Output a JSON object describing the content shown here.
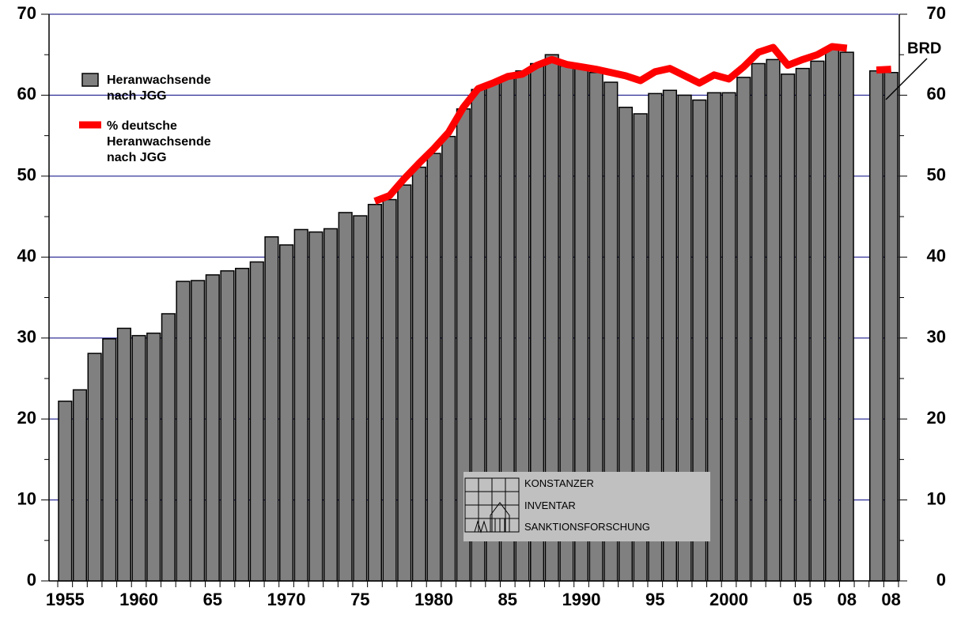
{
  "chart_data": {
    "type": "bar",
    "categories": [
      "1955",
      null,
      null,
      null,
      null,
      "1960",
      null,
      null,
      null,
      null,
      "65",
      null,
      null,
      null,
      null,
      "1970",
      null,
      null,
      null,
      null,
      "75",
      null,
      null,
      null,
      null,
      "1980",
      null,
      null,
      null,
      null,
      "85",
      null,
      null,
      null,
      null,
      "1990",
      null,
      null,
      null,
      null,
      "95",
      null,
      null,
      null,
      null,
      "2000",
      null,
      null,
      null,
      null,
      "05",
      null,
      null,
      "08",
      null,
      null,
      "08"
    ],
    "series": [
      {
        "name": "Heranwachsende nach JGG",
        "type": "bar",
        "color": "#808080",
        "values": [
          22.2,
          23.6,
          28.1,
          29.9,
          31.2,
          30.3,
          30.6,
          33.0,
          37.0,
          37.1,
          37.8,
          38.3,
          38.6,
          39.4,
          42.5,
          41.5,
          43.4,
          43.1,
          43.5,
          45.5,
          45.1,
          46.5,
          47.1,
          48.9,
          51.1,
          52.8,
          54.9,
          58.3,
          60.7,
          61.5,
          62.1,
          63.0,
          63.9,
          65.0,
          63.6,
          63.5,
          62.8,
          61.6,
          58.5,
          57.7,
          60.2,
          60.6,
          60.0,
          59.4,
          60.3,
          60.3,
          62.2,
          63.9,
          64.4,
          62.6,
          63.3,
          64.2,
          65.7,
          65.3,
          null,
          63.0,
          62.8
        ]
      },
      {
        "name": "% deutsche Heranwachsende nach JGG",
        "type": "line",
        "color": "#ff0000",
        "axis": "y2",
        "values": [
          null,
          null,
          null,
          null,
          null,
          null,
          null,
          null,
          null,
          null,
          null,
          null,
          null,
          null,
          null,
          null,
          null,
          null,
          null,
          null,
          null,
          46.9,
          47.6,
          49.7,
          51.6,
          53.4,
          55.4,
          58.5,
          60.8,
          61.5,
          62.3,
          62.6,
          63.7,
          64.4,
          63.8,
          63.5,
          63.2,
          62.8,
          62.4,
          61.8,
          62.9,
          63.3,
          62.4,
          61.5,
          62.5,
          62.0,
          63.5,
          65.3,
          65.9,
          63.7,
          64.4,
          65.0,
          66.0,
          65.8,
          null,
          63.1,
          63.2
        ]
      }
    ],
    "ylim": [
      0,
      70
    ],
    "yticks": [
      0,
      10,
      20,
      30,
      40,
      50,
      60,
      70
    ],
    "y2lim": [
      0,
      70
    ],
    "y2ticks": [
      0,
      10,
      20,
      30,
      40,
      50,
      60,
      70
    ],
    "grid": true,
    "grid_color": "#000080",
    "annotation": "BRD",
    "logo": [
      "KONSTANZER",
      "INVENTAR",
      "SANKTIONSFORSCHUNG"
    ]
  }
}
